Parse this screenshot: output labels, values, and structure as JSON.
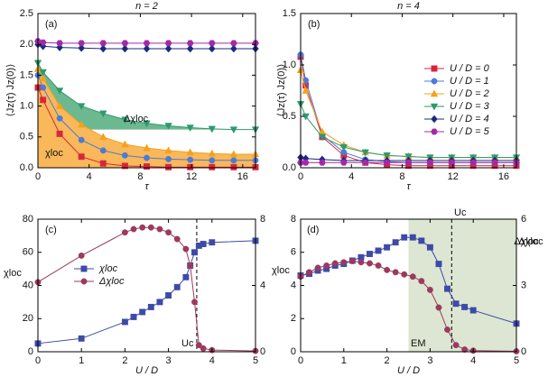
{
  "chart_data": [
    {
      "type": "line",
      "title": "n = 2",
      "xlabel": "τ",
      "ylabel": "⟨Jz(τ) Jz(0)⟩",
      "annotations": [
        "(a)",
        "Δχloc",
        "χloc"
      ],
      "xlim": [
        0,
        17
      ],
      "xticks": [
        0,
        4,
        8,
        12,
        16
      ],
      "ylim": [
        0,
        2.5
      ],
      "yticks": [
        {
          "value": 0,
          "label": "0.0"
        },
        0.5,
        {
          "value": 1,
          "label": "1.0"
        },
        1.5,
        {
          "value": 2,
          "label": "2.0"
        },
        2.5
      ],
      "x": [
        0,
        0.4,
        1.7,
        3.4,
        5.1,
        6.8,
        8.5,
        10.2,
        11.9,
        13.6,
        15.3,
        17
      ],
      "series": [
        {
          "color": "#d7263d",
          "marker": "square",
          "values": [
            1.3,
            1.1,
            0.55,
            0.18,
            0.07,
            0.03,
            0.02,
            0.01,
            0.01,
            0.01,
            0.01,
            0.01
          ]
        },
        {
          "color": "#4b7bd6",
          "marker": "circle",
          "values": [
            1.5,
            1.3,
            0.8,
            0.45,
            0.28,
            0.2,
            0.16,
            0.14,
            0.13,
            0.12,
            0.12,
            0.12
          ]
        },
        {
          "color": "#f4a11b",
          "marker": "tri-up",
          "fill": "zero",
          "fill_color": "#f9b85a",
          "values": [
            1.6,
            1.45,
            1.0,
            0.7,
            0.5,
            0.38,
            0.32,
            0.28,
            0.25,
            0.23,
            0.22,
            0.22
          ]
        },
        {
          "color": "#2e9a6e",
          "marker": "tri-down",
          "fill": "last",
          "fill_color": "#6cb891",
          "values": [
            1.7,
            1.55,
            1.25,
            1.0,
            0.88,
            0.78,
            0.72,
            0.68,
            0.65,
            0.63,
            0.62,
            0.62
          ]
        },
        {
          "color": "#1b2a80",
          "marker": "diamond",
          "values": [
            2.0,
            1.97,
            1.95,
            1.94,
            1.93,
            1.93,
            1.93,
            1.93,
            1.93,
            1.93,
            1.93,
            1.93
          ]
        },
        {
          "color": "#a12aa8",
          "marker": "hex",
          "values": [
            2.05,
            2.03,
            2.02,
            2.02,
            2.02,
            2.02,
            2.02,
            2.02,
            2.02,
            2.02,
            2.02,
            2.02
          ]
        }
      ]
    },
    {
      "type": "line",
      "title": "n = 4",
      "xlabel": "τ",
      "ylabel": "⟨Jz(τ) Jz(0)⟩",
      "annotations": [
        "(b)"
      ],
      "xlim": [
        0,
        17
      ],
      "xticks": [
        0,
        4,
        8,
        12,
        16
      ],
      "ylim": [
        0,
        1.5
      ],
      "yticks": [
        {
          "value": 0,
          "label": "0.0"
        },
        0.5,
        {
          "value": 1,
          "label": "1.0"
        },
        1.5
      ],
      "legend": "upper right",
      "x": [
        0,
        0.4,
        1.7,
        3.4,
        5.1,
        6.8,
        8.5,
        10.2,
        11.9,
        13.6,
        15.3,
        17
      ],
      "series": [
        {
          "name": "U / D = 0",
          "color": "#d7263d",
          "marker": "square",
          "values": [
            1.08,
            0.8,
            0.3,
            0.12,
            0.05,
            0.03,
            0.02,
            0.02,
            0.02,
            0.02,
            0.02,
            0.02
          ]
        },
        {
          "name": "U / D = 1",
          "color": "#4b7bd6",
          "marker": "circle",
          "values": [
            1.1,
            0.85,
            0.32,
            0.15,
            0.08,
            0.06,
            0.05,
            0.05,
            0.05,
            0.05,
            0.05,
            0.05
          ]
        },
        {
          "name": "U / D = 2",
          "color": "#f4a11b",
          "marker": "tri-up",
          "values": [
            0.95,
            0.75,
            0.35,
            0.22,
            0.15,
            0.12,
            0.11,
            0.1,
            0.1,
            0.1,
            0.1,
            0.1
          ]
        },
        {
          "name": "U / D = 3",
          "color": "#2e9a6e",
          "marker": "tri-down",
          "values": [
            0.62,
            0.5,
            0.3,
            0.2,
            0.15,
            0.12,
            0.11,
            0.1,
            0.1,
            0.1,
            0.1,
            0.1
          ]
        },
        {
          "name": "U / D = 4",
          "color": "#1b2a80",
          "marker": "diamond",
          "values": [
            0.1,
            0.09,
            0.08,
            0.07,
            0.07,
            0.07,
            0.07,
            0.07,
            0.07,
            0.07,
            0.07,
            0.07
          ]
        },
        {
          "name": "U / D = 5",
          "color": "#a12aa8",
          "marker": "hex",
          "values": [
            0.05,
            0.05,
            0.05,
            0.05,
            0.05,
            0.05,
            0.05,
            0.05,
            0.05,
            0.05,
            0.05,
            0.05
          ]
        }
      ]
    },
    {
      "type": "line",
      "xlabel": "U / D",
      "ylabel": "χloc",
      "y2label": "Δχloc",
      "annotations": [
        "(c)",
        "Uc"
      ],
      "vline": 3.65,
      "xlim": [
        0,
        5
      ],
      "xticks": [
        0,
        1,
        2,
        3,
        4,
        5
      ],
      "ylim": [
        0,
        80
      ],
      "yticks": [
        0,
        20,
        40,
        60,
        80
      ],
      "y2lim": [
        0,
        8
      ],
      "y2ticks": [
        0,
        4,
        8
      ],
      "legend": "center left",
      "x": [
        0,
        1,
        2,
        2.2,
        2.4,
        2.6,
        2.8,
        3,
        3.2,
        3.4,
        3.5,
        3.6,
        3.7,
        3.8,
        4,
        5
      ],
      "series": [
        {
          "name": "χloc",
          "color": "#3d4aa8",
          "marker": "square",
          "values": [
            5,
            8,
            18,
            21,
            24,
            27,
            30,
            34,
            39,
            45,
            52,
            60,
            64,
            65,
            66,
            67
          ]
        },
        {
          "name": "Δχloc",
          "color": "#9c3a5e",
          "marker": "circle",
          "axis": "y2",
          "values": [
            4.2,
            5.8,
            7.2,
            7.4,
            7.5,
            7.5,
            7.4,
            7.2,
            6.8,
            6.2,
            5.2,
            3.0,
            0.4,
            0.2,
            0.1,
            0.05
          ]
        }
      ]
    },
    {
      "type": "line",
      "xlabel": "U / D",
      "ylabel": "χloc",
      "y2label": "Δχloc",
      "annotations": [
        "(d)",
        "Uc",
        "EM"
      ],
      "vline": 3.5,
      "shaded_xrange": [
        2.5,
        5
      ],
      "shade_color": "#dce6d2",
      "xlim": [
        0,
        5
      ],
      "xticks": [
        0,
        1,
        2,
        3,
        4,
        5
      ],
      "ylim": [
        0,
        8
      ],
      "yticks": [
        0,
        2,
        4,
        6,
        8
      ],
      "y2lim": [
        0,
        6
      ],
      "y2ticks": [
        0,
        3,
        6
      ],
      "x": [
        0,
        0.2,
        0.4,
        0.6,
        0.8,
        1,
        1.2,
        1.4,
        1.6,
        1.8,
        2,
        2.2,
        2.4,
        2.6,
        2.8,
        3,
        3.2,
        3.4,
        3.6,
        3.8,
        4,
        5
      ],
      "series": [
        {
          "color": "#3d4aa8",
          "marker": "square",
          "values": [
            4.6,
            4.7,
            4.9,
            5.0,
            5.2,
            5.3,
            5.5,
            5.7,
            5.9,
            6.1,
            6.3,
            6.6,
            6.9,
            6.9,
            6.7,
            6.3,
            5.3,
            3.8,
            2.9,
            2.7,
            2.5,
            1.7
          ]
        },
        {
          "color": "#9c3a5e",
          "marker": "circle",
          "axis": "y2",
          "values": [
            3.4,
            3.6,
            3.8,
            3.9,
            4.0,
            4.05,
            4.1,
            4.05,
            4.0,
            3.9,
            3.7,
            3.6,
            3.5,
            3.4,
            3.2,
            2.8,
            2.0,
            1.0,
            0.3,
            0.1,
            0.05,
            0.02
          ]
        }
      ]
    }
  ]
}
